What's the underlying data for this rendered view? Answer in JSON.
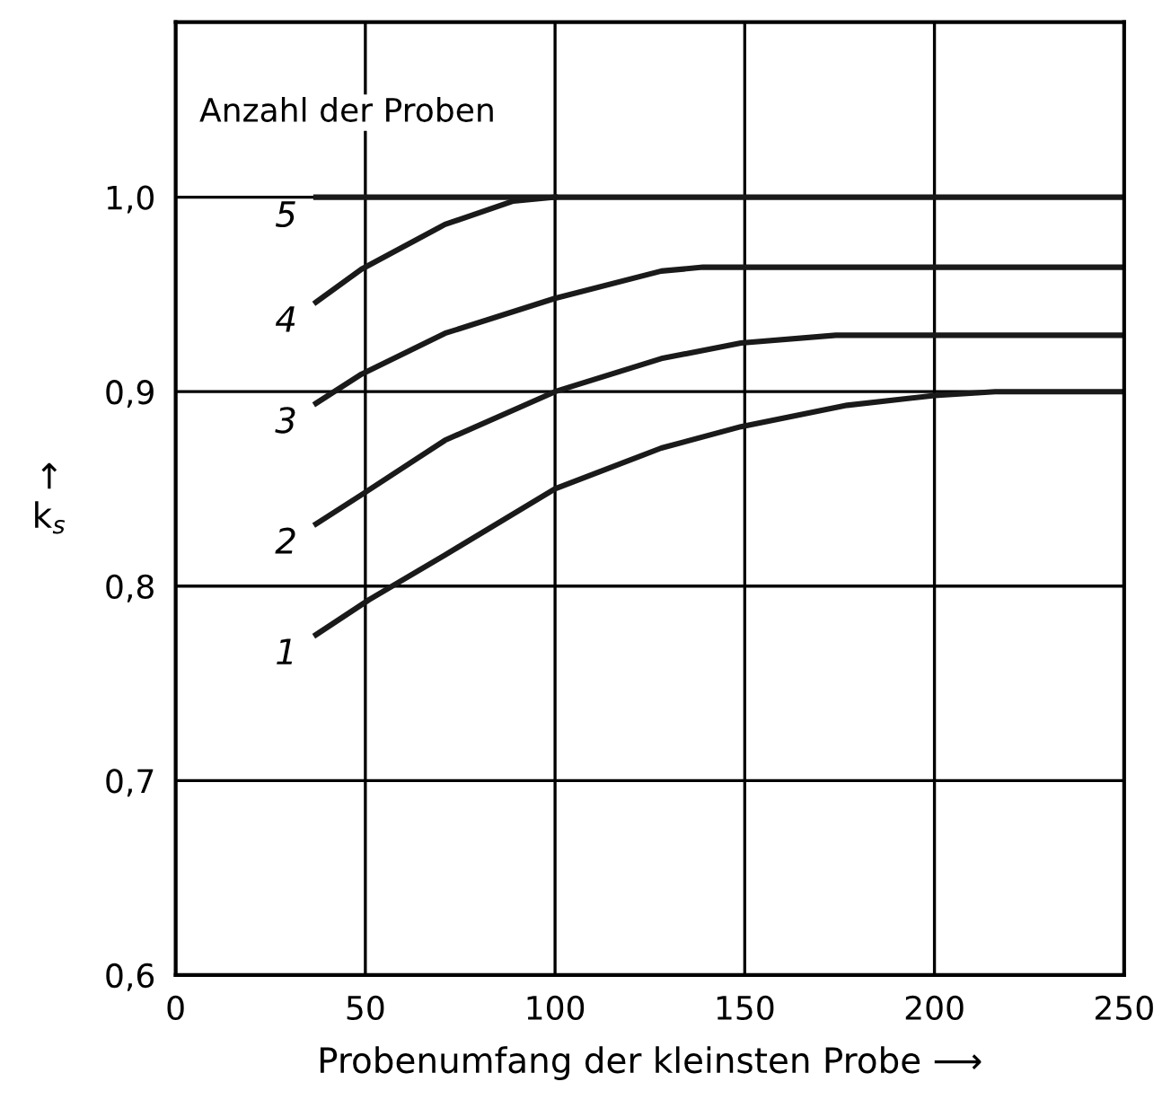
{
  "chart_data": {
    "type": "line",
    "xlabel": "Probenumfang der kleinsten Probe ⟶",
    "ylabel": "↑\nk$_{s}$",
    "legend_title": "Anzahl der Proben",
    "xlim": [
      0,
      250
    ],
    "ylim": [
      0.6,
      1.09
    ],
    "xticks": [
      0,
      50,
      100,
      150,
      200,
      250
    ],
    "yticks": [
      {
        "value": 0.6,
        "label": "0,6"
      },
      {
        "value": 0.7,
        "label": "0,7"
      },
      {
        "value": 0.8,
        "label": "0,8"
      },
      {
        "value": 0.9,
        "label": "0,9"
      },
      {
        "value": 1.0,
        "label": "1,0"
      }
    ],
    "grid": true,
    "legend": false,
    "marker": "none",
    "line_style": "solid",
    "series": [
      {
        "name": "1",
        "color": "#1a1a1a",
        "x": [
          37,
          51,
          71,
          100,
          128,
          149,
          177,
          200,
          216,
          250
        ],
        "values": [
          0.775,
          0.793,
          0.816,
          0.85,
          0.871,
          0.882,
          0.893,
          0.898,
          0.9,
          0.9
        ]
      },
      {
        "name": "2",
        "color": "#1a1a1a",
        "x": [
          37,
          49,
          71,
          100,
          128,
          149,
          174,
          250
        ],
        "values": [
          0.832,
          0.847,
          0.875,
          0.9,
          0.917,
          0.925,
          0.929,
          0.929
        ]
      },
      {
        "name": "3",
        "color": "#1a1a1a",
        "x": [
          37,
          49,
          71,
          100,
          128,
          139,
          250
        ],
        "values": [
          0.894,
          0.909,
          0.93,
          0.948,
          0.962,
          0.964,
          0.964
        ]
      },
      {
        "name": "4",
        "color": "#1a1a1a",
        "x": [
          37,
          49,
          71,
          89,
          100
        ],
        "values": [
          0.946,
          0.963,
          0.986,
          0.998,
          1.0
        ]
      },
      {
        "name": "5",
        "color": "#1a1a1a",
        "x": [
          37,
          250
        ],
        "values": [
          1.0,
          1.0
        ]
      }
    ]
  }
}
